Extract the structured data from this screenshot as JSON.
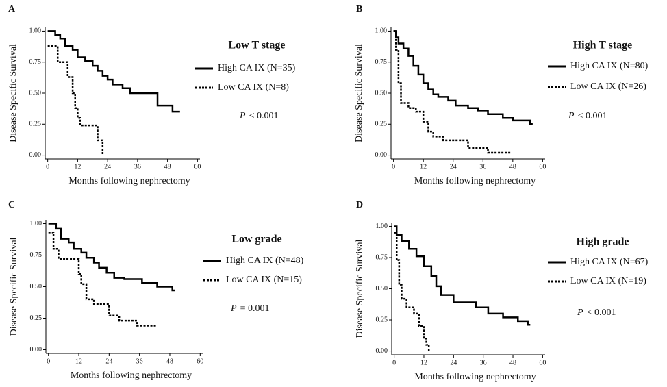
{
  "chart_data": [
    {
      "type": "step",
      "panel": "A",
      "title": "Low T stage",
      "x_label": "Months following nephrectomy",
      "y_label": "Disease Specific Survival",
      "p_label": "P",
      "p_value": "< 0.001",
      "xlim": [
        -1,
        61
      ],
      "ylim": [
        -0.03,
        1.03
      ],
      "xticks": [
        0,
        12,
        24,
        36,
        48,
        60
      ],
      "yticks": [
        {
          "value": 0,
          "label": "0.00"
        },
        {
          "value": 0.25,
          "label": "0.25"
        },
        {
          "value": 0.5,
          "label": "0.50"
        },
        {
          "value": 0.75,
          "label": "0.75"
        },
        {
          "value": 1,
          "label": "1.00"
        }
      ],
      "series": [
        {
          "name": "High CA IX (N=35)",
          "color": "#000000",
          "line_style": "solid",
          "x": [
            0,
            3,
            5,
            7,
            10,
            12,
            15,
            18,
            20,
            22,
            24,
            26,
            30,
            33,
            44,
            50,
            53
          ],
          "values": [
            1.0,
            0.97,
            0.94,
            0.88,
            0.85,
            0.79,
            0.76,
            0.72,
            0.68,
            0.64,
            0.61,
            0.57,
            0.54,
            0.5,
            0.4,
            0.35,
            0.35
          ]
        },
        {
          "name": "Low CA IX (N=8)",
          "color": "#000000",
          "line_style": "dotted",
          "x": [
            0,
            4,
            8,
            10,
            11,
            12,
            13,
            20,
            22
          ],
          "values": [
            0.88,
            0.75,
            0.63,
            0.5,
            0.38,
            0.3,
            0.24,
            0.12,
            0.0
          ]
        }
      ]
    },
    {
      "type": "step",
      "panel": "B",
      "title": "High T stage",
      "x_label": "Months following nephrectomy",
      "y_label": "Disease Specific Survival",
      "p_label": "P",
      "p_value": "< 0.001",
      "xlim": [
        -1,
        61
      ],
      "ylim": [
        -0.03,
        1.03
      ],
      "xticks": [
        0,
        12,
        24,
        36,
        48,
        60
      ],
      "yticks": [
        {
          "value": 0,
          "label": "0.00"
        },
        {
          "value": 0.25,
          "label": "0.25"
        },
        {
          "value": 0.5,
          "label": "0.50"
        },
        {
          "value": 0.75,
          "label": "0.75"
        },
        {
          "value": 1,
          "label": "1.00"
        }
      ],
      "series": [
        {
          "name": "High CA IX (N=80)",
          "color": "#000000",
          "line_style": "solid",
          "x": [
            0,
            1,
            2,
            4,
            6,
            8,
            10,
            12,
            14,
            16,
            18,
            22,
            25,
            30,
            34,
            38,
            44,
            48,
            55,
            56
          ],
          "values": [
            1.0,
            0.95,
            0.9,
            0.86,
            0.8,
            0.72,
            0.65,
            0.58,
            0.53,
            0.49,
            0.47,
            0.44,
            0.4,
            0.38,
            0.36,
            0.33,
            0.3,
            0.28,
            0.25,
            0.25
          ]
        },
        {
          "name": "Low CA IX (N=26)",
          "color": "#000000",
          "line_style": "dotted",
          "x": [
            0,
            1,
            2,
            3,
            6,
            9,
            12,
            14,
            16,
            20,
            30,
            38,
            47
          ],
          "values": [
            1.0,
            0.85,
            0.58,
            0.42,
            0.38,
            0.35,
            0.27,
            0.19,
            0.15,
            0.12,
            0.06,
            0.02,
            0.02
          ]
        }
      ]
    },
    {
      "type": "step",
      "panel": "C",
      "title": "Low grade",
      "x_label": "Months following nephrectomy",
      "y_label": "Disease Specific Survival",
      "p_label": "P",
      "p_value": "= 0.001",
      "xlim": [
        -1,
        61
      ],
      "ylim": [
        -0.03,
        1.03
      ],
      "xticks": [
        0,
        12,
        24,
        36,
        48,
        60
      ],
      "yticks": [
        {
          "value": 0,
          "label": "0.00"
        },
        {
          "value": 0.25,
          "label": "0.25"
        },
        {
          "value": 0.5,
          "label": "0.50"
        },
        {
          "value": 0.75,
          "label": "0.75"
        },
        {
          "value": 1,
          "label": "1.00"
        }
      ],
      "series": [
        {
          "name": "High CA IX (N=48)",
          "color": "#000000",
          "line_style": "solid",
          "x": [
            0,
            3,
            5,
            8,
            10,
            13,
            15,
            18,
            20,
            23,
            26,
            30,
            37,
            43,
            49,
            50
          ],
          "values": [
            1.0,
            0.96,
            0.88,
            0.85,
            0.8,
            0.77,
            0.73,
            0.69,
            0.65,
            0.61,
            0.57,
            0.56,
            0.53,
            0.5,
            0.47,
            0.47
          ]
        },
        {
          "name": "Low CA IX (N=15)",
          "color": "#000000",
          "line_style": "dotted",
          "x": [
            0,
            2,
            4,
            12,
            13,
            15,
            18,
            24,
            28,
            35,
            43
          ],
          "values": [
            0.93,
            0.8,
            0.72,
            0.6,
            0.52,
            0.4,
            0.36,
            0.27,
            0.23,
            0.19,
            0.19
          ]
        }
      ]
    },
    {
      "type": "step",
      "panel": "D",
      "title": "High grade",
      "x_label": "Months following nephrectomy",
      "y_label": "Disease Specific Survival",
      "p_label": "P",
      "p_value": "< 0.001",
      "xlim": [
        -1,
        61
      ],
      "ylim": [
        -0.03,
        1.03
      ],
      "xticks": [
        0,
        12,
        24,
        36,
        48,
        60
      ],
      "yticks": [
        {
          "value": 0,
          "label": "0.00"
        },
        {
          "value": 0.25,
          "label": "0.25"
        },
        {
          "value": 0.5,
          "label": "0.50"
        },
        {
          "value": 0.75,
          "label": "0.75"
        },
        {
          "value": 1,
          "label": "1.00"
        }
      ],
      "series": [
        {
          "name": "High CA IX (N=67)",
          "color": "#000000",
          "line_style": "solid",
          "x": [
            0,
            1,
            3,
            6,
            9,
            12,
            15,
            17,
            19,
            24,
            33,
            38,
            44,
            50,
            54,
            55
          ],
          "values": [
            1.0,
            0.93,
            0.88,
            0.82,
            0.76,
            0.68,
            0.6,
            0.52,
            0.45,
            0.39,
            0.35,
            0.3,
            0.27,
            0.24,
            0.21,
            0.21
          ]
        },
        {
          "name": "Low CA IX (N=19)",
          "color": "#000000",
          "line_style": "dotted",
          "x": [
            0,
            1,
            2,
            3,
            5,
            8,
            10,
            12,
            13,
            14
          ],
          "values": [
            0.95,
            0.73,
            0.53,
            0.42,
            0.35,
            0.3,
            0.2,
            0.1,
            0.05,
            0.0
          ]
        }
      ]
    }
  ]
}
